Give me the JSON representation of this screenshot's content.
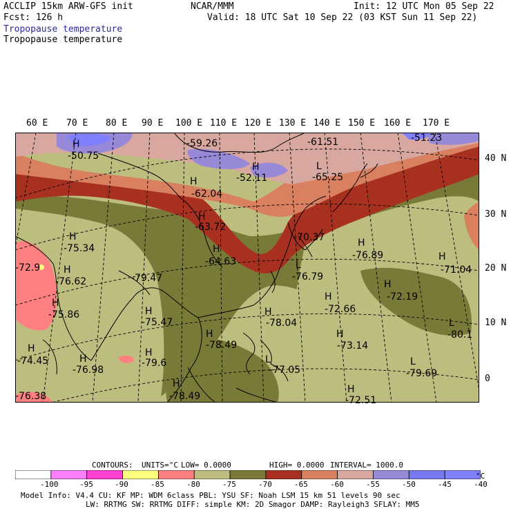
{
  "header": {
    "model": "ACCLIP 15km ARW-GFS init",
    "forecast": "Fcst:  126 h",
    "variable_1": "Tropopause temperature",
    "variable_2": "Tropopause temperature",
    "center": "NCAR/MMM",
    "init": "Init: 12 UTC Mon 05 Sep 22",
    "valid": "Valid: 18 UTC Sat 10 Sep 22 (03 KST Sun 11 Sep 22)"
  },
  "map": {
    "lon_labels": [
      "60 E",
      "70 E",
      "80 E",
      "90 E",
      "100 E",
      "110 E",
      "120 E",
      "130 E",
      "140 E",
      "150 E",
      "160 E",
      "170 E"
    ],
    "lat_labels": [
      "40 N",
      "30 N",
      "20 N",
      "10 N",
      "0"
    ],
    "annotations": [
      {
        "label": "H",
        "value": "-50.75"
      },
      {
        "label": "H",
        "value": "-59.26"
      },
      {
        "label": "H",
        "value": "-61.51"
      },
      {
        "label": "H",
        "value": "-51.23"
      },
      {
        "label": "H",
        "value": "-52.11"
      },
      {
        "label": "L",
        "value": "-65.25"
      },
      {
        "label": "H",
        "value": "-62.04"
      },
      {
        "label": "H",
        "value": "-63.72"
      },
      {
        "label": "H",
        "value": "-64.63"
      },
      {
        "label": "H",
        "value": "-70.37"
      },
      {
        "label": "H",
        "value": "-75.34"
      },
      {
        "label": "H",
        "value": "-76.62"
      },
      {
        "label": "H",
        "value": "-79.47"
      },
      {
        "label": "H",
        "value": "-75.86"
      },
      {
        "label": "H",
        "value": "-75.47"
      },
      {
        "label": "H",
        "value": "-78.49"
      },
      {
        "label": "H",
        "value": "-79.6"
      },
      {
        "label": "H",
        "value": "-74.45"
      },
      {
        "label": "H",
        "value": "-76.98"
      },
      {
        "label": "H",
        "value": "-76.89"
      },
      {
        "label": "L",
        "value": "-76.79"
      },
      {
        "label": "H",
        "value": "-71.04"
      },
      {
        "label": "H",
        "value": "-72.19"
      },
      {
        "label": "H",
        "value": "-72.66"
      },
      {
        "label": "H",
        "value": "-78.04"
      },
      {
        "label": "H",
        "value": "-73.14"
      },
      {
        "label": "L",
        "value": "-80.1"
      },
      {
        "label": "L",
        "value": "-79.69"
      },
      {
        "label": "L",
        "value": "-77.05"
      },
      {
        "label": "H",
        "value": "-78.49"
      },
      {
        "label": "H",
        "value": "-72.51"
      },
      {
        "label": "H",
        "value": "-76.38"
      },
      {
        "label": "H",
        "value": "-72.9"
      }
    ]
  },
  "contours": {
    "title": "CONTOURS:",
    "units": "UNITS=°C",
    "low": "LOW=  0.0000",
    "high": "HIGH=  0.0000",
    "interval": "INTERVAL=   1000.0"
  },
  "colorbar": {
    "colors": [
      "#ffffff",
      "#ff80ff",
      "#ff40d0",
      "#ffff80",
      "#ff8080",
      "#bdbd80",
      "#7a7a38",
      "#a83020",
      "#d88060",
      "#d8a8a0",
      "#9888d8",
      "#7878f0",
      "#8080ff"
    ],
    "labels": [
      "-100",
      "-95",
      "-90",
      "-85",
      "-80",
      "-75",
      "-70",
      "-65",
      "-60",
      "-55",
      "-50",
      "-45",
      "-40",
      "°C"
    ]
  },
  "footer": {
    "line1": "Model Info: V4.4      CU: KF      MP: WDM 6class  PBL: YSU     SF: Noah LSM    15 km   51 levels   90 sec",
    "line2": "LW: RRTMG   SW: RRTMG  DIFF: simple KM: 2D Smagor DAMP: Rayleigh3  SFLAY: MM5"
  }
}
